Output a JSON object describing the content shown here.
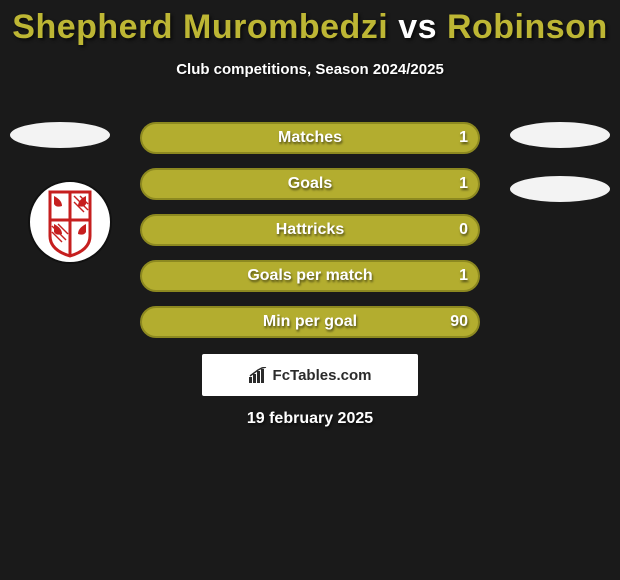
{
  "colors": {
    "background": "#1a1a1a",
    "accent": "#bdb634",
    "bar_fill": "#b3ad2f",
    "bar_border": "#8d8920",
    "white": "#ffffff",
    "photo_bg": "#f3f3f3",
    "crest_red": "#c61f1f",
    "crest_border": "#111111"
  },
  "title": {
    "player1": "Shepherd Murombedzi",
    "vs": "vs",
    "player2": "Robinson",
    "fontsize": 34
  },
  "subtitle": "Club competitions, Season 2024/2025",
  "bar_style": {
    "height": 32,
    "gap": 14,
    "radius": 16,
    "label_fontsize": 16,
    "full_width_pct": 100,
    "border_width": 2
  },
  "stats": [
    {
      "label": "Matches",
      "value": "1",
      "fill_pct": 100
    },
    {
      "label": "Goals",
      "value": "1",
      "fill_pct": 100
    },
    {
      "label": "Hattricks",
      "value": "0",
      "fill_pct": 100
    },
    {
      "label": "Goals per match",
      "value": "1",
      "fill_pct": 100
    },
    {
      "label": "Min per goal",
      "value": "90",
      "fill_pct": 100
    }
  ],
  "brand": {
    "text": "FcTables.com",
    "icon": "bar-chart-icon"
  },
  "date": "19 february 2025"
}
